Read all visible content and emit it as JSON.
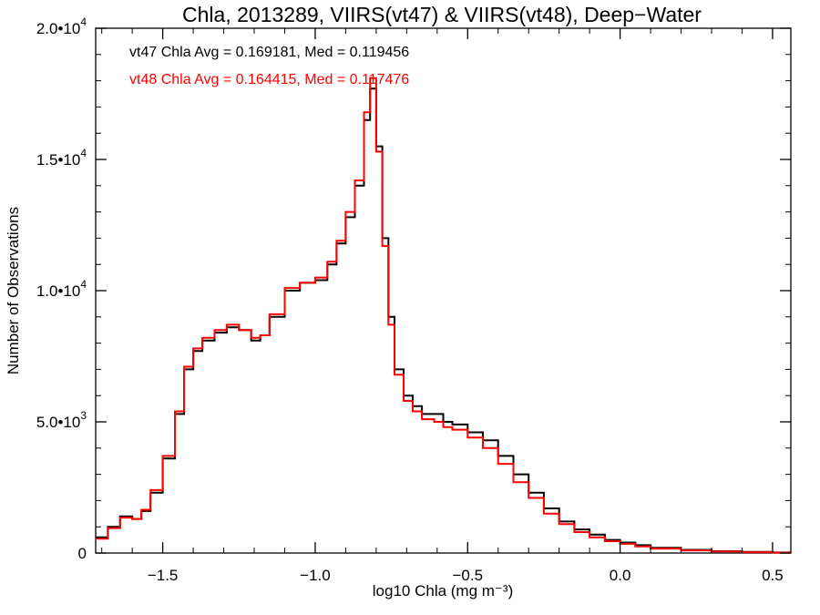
{
  "chart_data": {
    "type": "line",
    "style": "histogram-step",
    "title": "Chla, 2013289, VIIRS(vt47) & VIIRS(vt48), Deep−Water",
    "xlabel": "log10 Chla (mg m⁻³)",
    "ylabel": "Number of Observations",
    "xlim": [
      -1.72,
      0.56
    ],
    "ylim": [
      0,
      20000
    ],
    "x_ticks": [
      {
        "value": -1.5,
        "label": "−1.5"
      },
      {
        "value": -1.0,
        "label": "−1.0"
      },
      {
        "value": -0.5,
        "label": "−0.5"
      },
      {
        "value": 0.0,
        "label": "0.0"
      },
      {
        "value": 0.5,
        "label": "0.5"
      }
    ],
    "y_ticks": [
      {
        "value": 0,
        "mantissa": "0",
        "exp": ""
      },
      {
        "value": 5000,
        "mantissa": "5.0•10",
        "exp": "3"
      },
      {
        "value": 10000,
        "mantissa": "1.0•10",
        "exp": "4"
      },
      {
        "value": 15000,
        "mantissa": "1.5•10",
        "exp": "4"
      },
      {
        "value": 20000,
        "mantissa": "2.0•10",
        "exp": "4"
      }
    ],
    "grid": false,
    "annotations": [
      {
        "text": "vt47 Chla Avg = 0.169181, Med = 0.119456",
        "color": "#000000"
      },
      {
        "text": "vt48 Chla Avg = 0.164415, Med = 0.117476",
        "color": "#ff0000"
      }
    ],
    "series": [
      {
        "color": "#000000",
        "x": [
          -1.72,
          -1.68,
          -1.64,
          -1.6,
          -1.57,
          -1.54,
          -1.5,
          -1.46,
          -1.43,
          -1.4,
          -1.37,
          -1.33,
          -1.29,
          -1.25,
          -1.21,
          -1.18,
          -1.15,
          -1.1,
          -1.05,
          -1.0,
          -0.96,
          -0.93,
          -0.9,
          -0.87,
          -0.84,
          -0.82,
          -0.8,
          -0.78,
          -0.76,
          -0.74,
          -0.71,
          -0.68,
          -0.65,
          -0.61,
          -0.58,
          -0.55,
          -0.5,
          -0.45,
          -0.4,
          -0.35,
          -0.3,
          -0.25,
          -0.2,
          -0.15,
          -0.1,
          -0.05,
          0.0,
          0.05,
          0.1,
          0.2,
          0.3,
          0.4,
          0.5,
          0.56
        ],
        "y": [
          600,
          1000,
          1400,
          1300,
          1600,
          2300,
          3600,
          5300,
          7000,
          7700,
          8100,
          8400,
          8600,
          8500,
          8100,
          8300,
          9000,
          10000,
          10300,
          10400,
          11000,
          11800,
          12800,
          14000,
          16500,
          17700,
          15500,
          12000,
          9000,
          7000,
          6000,
          5600,
          5300,
          5300,
          5000,
          4900,
          4600,
          4300,
          3700,
          3000,
          2300,
          1700,
          1200,
          900,
          700,
          500,
          400,
          300,
          200,
          120,
          70,
          40,
          20,
          10
        ]
      },
      {
        "color": "#ff0000",
        "x": [
          -1.72,
          -1.68,
          -1.64,
          -1.6,
          -1.57,
          -1.54,
          -1.5,
          -1.46,
          -1.43,
          -1.4,
          -1.37,
          -1.33,
          -1.29,
          -1.25,
          -1.21,
          -1.18,
          -1.15,
          -1.1,
          -1.05,
          -1.0,
          -0.96,
          -0.93,
          -0.9,
          -0.87,
          -0.84,
          -0.82,
          -0.8,
          -0.78,
          -0.76,
          -0.74,
          -0.71,
          -0.68,
          -0.65,
          -0.61,
          -0.58,
          -0.55,
          -0.5,
          -0.45,
          -0.4,
          -0.35,
          -0.3,
          -0.25,
          -0.2,
          -0.15,
          -0.1,
          -0.05,
          0.0,
          0.05,
          0.1,
          0.2,
          0.3,
          0.4,
          0.5,
          0.56
        ],
        "y": [
          550,
          950,
          1350,
          1300,
          1650,
          2400,
          3700,
          5400,
          7100,
          7800,
          8200,
          8500,
          8700,
          8500,
          8200,
          8300,
          9100,
          10100,
          10300,
          10500,
          11100,
          11900,
          13000,
          14200,
          16800,
          18100,
          15300,
          11700,
          8700,
          6800,
          5800,
          5400,
          5100,
          5000,
          4800,
          4700,
          4400,
          4000,
          3400,
          2700,
          2100,
          1500,
          1100,
          800,
          600,
          450,
          350,
          250,
          170,
          100,
          60,
          30,
          15,
          8
        ]
      }
    ]
  }
}
